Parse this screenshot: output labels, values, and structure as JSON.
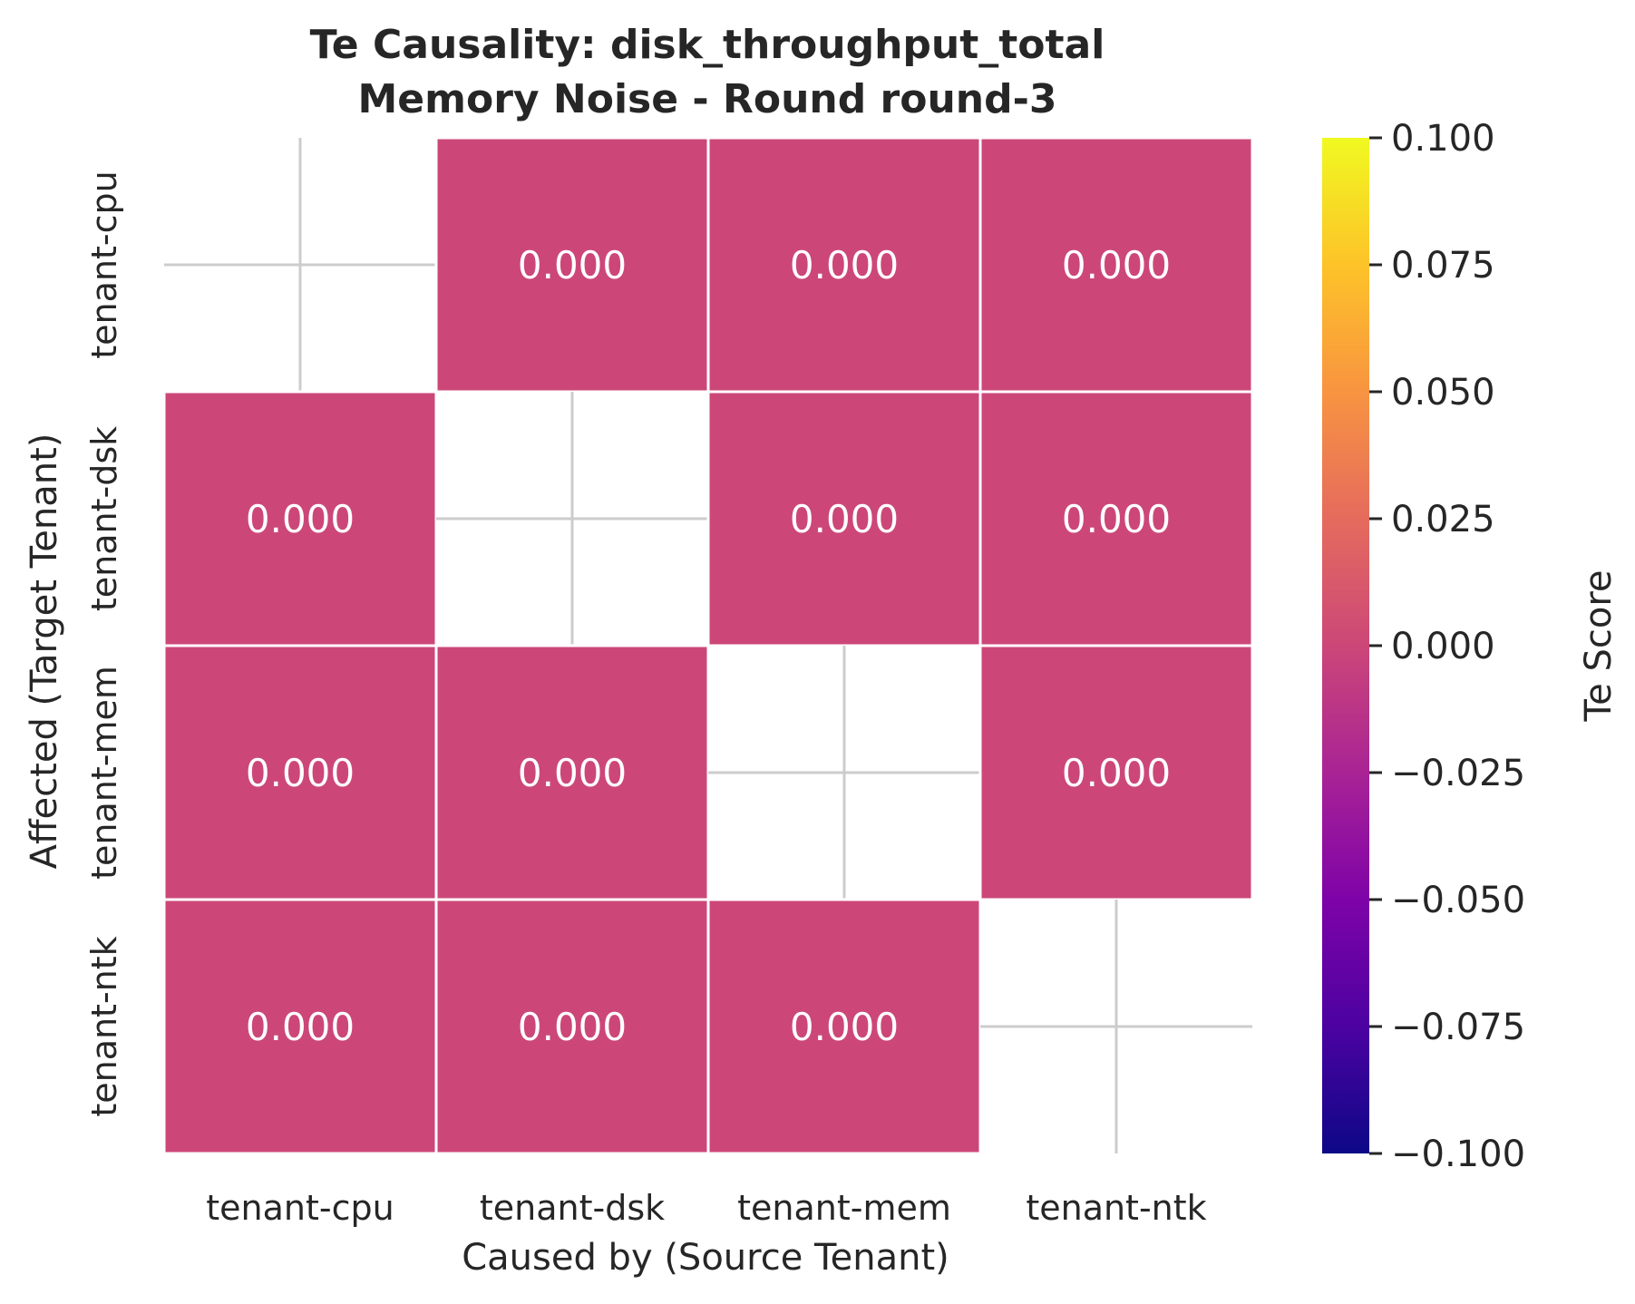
{
  "chart_data": {
    "type": "heatmap",
    "title": "Te Causality: disk_throughput_total",
    "subtitle": "Memory Noise - Round round-3",
    "xlabel": "Caused by (Source Tenant)",
    "ylabel": "Affected (Target Tenant)",
    "x_categories": [
      "tenant-cpu",
      "tenant-dsk",
      "tenant-mem",
      "tenant-ntk"
    ],
    "y_categories": [
      "tenant-cpu",
      "tenant-dsk",
      "tenant-mem",
      "tenant-ntk"
    ],
    "values": [
      [
        null,
        0.0,
        0.0,
        0.0
      ],
      [
        0.0,
        null,
        0.0,
        0.0
      ],
      [
        0.0,
        0.0,
        null,
        0.0
      ],
      [
        0.0,
        0.0,
        0.0,
        null
      ]
    ],
    "cell_labels": [
      [
        "",
        "0.000",
        "0.000",
        "0.000"
      ],
      [
        "0.000",
        "",
        "0.000",
        "0.000"
      ],
      [
        "0.000",
        "0.000",
        "",
        "0.000"
      ],
      [
        "0.000",
        "0.000",
        "0.000",
        ""
      ]
    ],
    "colorbar": {
      "label": "Te Score",
      "colormap": "plasma",
      "range": [
        -0.1,
        0.1
      ],
      "ticks": [
        0.1,
        0.075,
        0.05,
        0.025,
        0.0,
        -0.025,
        -0.05,
        -0.075,
        -0.1
      ],
      "tick_labels": [
        "0.100",
        "0.075",
        "0.050",
        "0.025",
        "0.000",
        "−0.025",
        "−0.050",
        "−0.075",
        "−0.100"
      ]
    },
    "colors": {
      "cell": "#cc4778",
      "grid_lines": "#cccccc",
      "cell_border": "#ffffff"
    }
  }
}
